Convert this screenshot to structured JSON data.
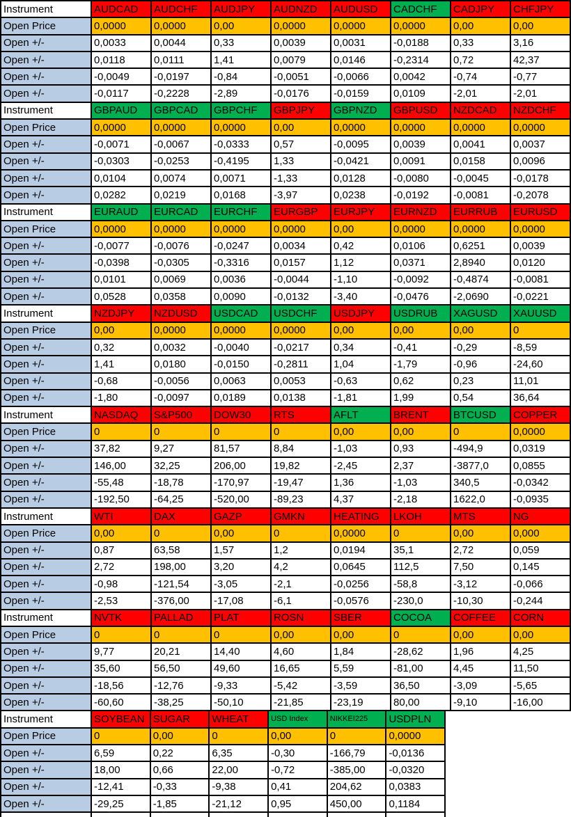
{
  "colors": {
    "red": "#ff0000",
    "green": "#00b050",
    "orange": "#ffc000",
    "label_blue": "#b8cce4",
    "grid": "#000000",
    "cell_white": "#ffffff"
  },
  "labels": {
    "instrument": "Instrument",
    "open_price": "Open Price",
    "open_change": "Open +/-"
  },
  "sections": [
    {
      "instruments": [
        {
          "name": "AUDCAD",
          "color": "red"
        },
        {
          "name": "AUDCHF",
          "color": "red"
        },
        {
          "name": "AUDJPY",
          "color": "red"
        },
        {
          "name": "AUDNZD",
          "color": "red"
        },
        {
          "name": "AUDUSD",
          "color": "red"
        },
        {
          "name": "CADCHF",
          "color": "green"
        },
        {
          "name": "CADJPY",
          "color": "red"
        },
        {
          "name": "CHFJPY",
          "color": "red"
        }
      ],
      "open_price": [
        "0,0000",
        "0,0000",
        "0,00",
        "0,0000",
        "0,0000",
        "0,0000",
        "0,00",
        "0,00"
      ],
      "open_changes": [
        [
          "0,0033",
          "0,0044",
          "0,33",
          "0,0039",
          "0,0031",
          "-0,0188",
          "0,33",
          "3,16"
        ],
        [
          "0,0118",
          "0,0111",
          "1,41",
          "0,0079",
          "0,0146",
          "-0,2314",
          "0,72",
          "42,37"
        ],
        [
          "-0,0049",
          "-0,0197",
          "-0,84",
          "-0,0051",
          "-0,0066",
          "0,0042",
          "-0,74",
          "-0,77"
        ],
        [
          "-0,0117",
          "-0,2228",
          "-2,89",
          "-0,0176",
          "-0,0159",
          "0,0109",
          "-2,01",
          "-2,01"
        ]
      ]
    },
    {
      "instruments": [
        {
          "name": "GBPAUD",
          "color": "green"
        },
        {
          "name": "GBPCAD",
          "color": "green"
        },
        {
          "name": "GBPCHF",
          "color": "green"
        },
        {
          "name": "GBPJPY",
          "color": "red"
        },
        {
          "name": "GBPNZD",
          "color": "green"
        },
        {
          "name": "GBPUSD",
          "color": "red"
        },
        {
          "name": "NZDCAD",
          "color": "red"
        },
        {
          "name": "NZDCHF",
          "color": "red"
        }
      ],
      "open_price": [
        "0,0000",
        "0,0000",
        "0,0000",
        "0,00",
        "0,0000",
        "0,0000",
        "0,0000",
        "0,0000"
      ],
      "open_changes": [
        [
          "-0,0071",
          "-0,0067",
          "-0,0333",
          "0,57",
          "-0,0095",
          "0,0039",
          "0,0041",
          "0,0037"
        ],
        [
          "-0,0303",
          "-0,0253",
          "-0,4195",
          "1,33",
          "-0,0421",
          "0,0091",
          "0,0158",
          "0,0096"
        ],
        [
          "0,0104",
          "0,0074",
          "0,0071",
          "-1,33",
          "0,0128",
          "-0,0080",
          "-0,0045",
          "-0,0178"
        ],
        [
          "0,0282",
          "0,0219",
          "0,0168",
          "-3,97",
          "0,0238",
          "-0,0192",
          "-0,0081",
          "-0,2078"
        ]
      ]
    },
    {
      "instruments": [
        {
          "name": "EURAUD",
          "color": "green"
        },
        {
          "name": "EURCAD",
          "color": "green"
        },
        {
          "name": "EURCHF",
          "color": "green"
        },
        {
          "name": "EURGBP",
          "color": "red"
        },
        {
          "name": "EURJPY",
          "color": "red"
        },
        {
          "name": "EURNZD",
          "color": "red"
        },
        {
          "name": "EURRUB",
          "color": "red"
        },
        {
          "name": "EURUSD",
          "color": "red"
        }
      ],
      "open_price": [
        "0,0000",
        "0,0000",
        "0,0000",
        "0,0000",
        "0,00",
        "0,0000",
        "0,0000",
        "0,0000"
      ],
      "open_changes": [
        [
          "-0,0077",
          "-0,0076",
          "-0,0247",
          "0,0034",
          "0,42",
          "0,0106",
          "0,6251",
          "0,0039"
        ],
        [
          "-0,0398",
          "-0,0305",
          "-0,3316",
          "0,0157",
          "1,12",
          "0,0371",
          "2,8940",
          "0,0120"
        ],
        [
          "0,0101",
          "0,0069",
          "0,0036",
          "-0,0044",
          "-1,10",
          "-0,0092",
          "-0,4874",
          "-0,0081"
        ],
        [
          "0,0528",
          "0,0358",
          "0,0090",
          "-0,0132",
          "-3,40",
          "-0,0476",
          "-2,0690",
          "-0,0221"
        ]
      ]
    },
    {
      "instruments": [
        {
          "name": "NZDJPY",
          "color": "red"
        },
        {
          "name": "NZDUSD",
          "color": "red"
        },
        {
          "name": "USDCAD",
          "color": "green"
        },
        {
          "name": "USDCHF",
          "color": "green"
        },
        {
          "name": "USDJPY",
          "color": "red"
        },
        {
          "name": "USDRUB",
          "color": "green"
        },
        {
          "name": "XAGUSD",
          "color": "green"
        },
        {
          "name": "XAUUSD",
          "color": "green"
        }
      ],
      "open_price": [
        "0,00",
        "0,0000",
        "0,0000",
        "0,0000",
        "0,00",
        "0,00",
        "0,00",
        "0"
      ],
      "open_changes": [
        [
          "0,32",
          "0,0032",
          "-0,0040",
          "-0,0217",
          "0,34",
          "-0,41",
          "-0,29",
          "-8,59"
        ],
        [
          "1,41",
          "0,0180",
          "-0,0150",
          "-0,2811",
          "1,04",
          "-1,79",
          "-0,96",
          "-24,60"
        ],
        [
          "-0,68",
          "-0,0056",
          "0,0063",
          "0,0053",
          "-0,63",
          "0,62",
          "0,23",
          "11,01"
        ],
        [
          "-1,80",
          "-0,0097",
          "0,0189",
          "0,0138",
          "-1,81",
          "1,99",
          "0,54",
          "36,64"
        ]
      ]
    },
    {
      "instruments": [
        {
          "name": "NASDAQ",
          "color": "red"
        },
        {
          "name": "S&P500",
          "color": "red"
        },
        {
          "name": "DOW30",
          "color": "red"
        },
        {
          "name": "RTS",
          "color": "red"
        },
        {
          "name": "AFLT",
          "color": "green"
        },
        {
          "name": "BRENT",
          "color": "red"
        },
        {
          "name": "BTCUSD",
          "color": "green"
        },
        {
          "name": "COPPER",
          "color": "red"
        }
      ],
      "open_price": [
        "0",
        "0",
        "0",
        "0",
        "0,00",
        "0,00",
        "0",
        "0,0000"
      ],
      "open_changes": [
        [
          "37,82",
          "9,27",
          "81,57",
          "8,84",
          "-1,03",
          "0,93",
          "-494,9",
          "0,0319"
        ],
        [
          "146,00",
          "32,25",
          "206,00",
          "19,82",
          "-2,45",
          "2,37",
          "-3877,0",
          "0,0855"
        ],
        [
          "-55,48",
          "-18,78",
          "-170,97",
          "-19,47",
          "1,36",
          "-1,03",
          "340,5",
          "-0,0342"
        ],
        [
          "-192,50",
          "-64,25",
          "-520,00",
          "-89,23",
          "4,37",
          "-2,18",
          "1622,0",
          "-0,0935"
        ]
      ]
    },
    {
      "instruments": [
        {
          "name": "WTI",
          "color": "red"
        },
        {
          "name": "DAX",
          "color": "red"
        },
        {
          "name": "GAZP",
          "color": "red"
        },
        {
          "name": "GMKN",
          "color": "red"
        },
        {
          "name": "HEATING",
          "color": "red"
        },
        {
          "name": "LKOH",
          "color": "red"
        },
        {
          "name": "MTS",
          "color": "red"
        },
        {
          "name": "NG",
          "color": "red"
        }
      ],
      "open_price": [
        "0,00",
        "0",
        "0,00",
        "0",
        "0,0000",
        "0",
        "0,00",
        "0,000"
      ],
      "open_changes": [
        [
          "0,87",
          "63,58",
          "1,57",
          "1,2",
          "0,0194",
          "35,1",
          "2,72",
          "0,059"
        ],
        [
          "2,72",
          "198,00",
          "3,20",
          "4,2",
          "0,0645",
          "112,5",
          "7,50",
          "0,145"
        ],
        [
          "-0,98",
          "-121,54",
          "-3,05",
          "-2,1",
          "-0,0256",
          "-58,8",
          "-3,12",
          "-0,066"
        ],
        [
          "-2,53",
          "-376,00",
          "-17,08",
          "-6,1",
          "-0,0576",
          "-230,0",
          "-10,30",
          "-0,244"
        ]
      ]
    },
    {
      "instruments": [
        {
          "name": "NVTK",
          "color": "red"
        },
        {
          "name": "PALLAD",
          "color": "red"
        },
        {
          "name": "PLAT",
          "color": "red"
        },
        {
          "name": "ROSN",
          "color": "red"
        },
        {
          "name": "SBER",
          "color": "red"
        },
        {
          "name": "COCOA",
          "color": "green"
        },
        {
          "name": "COFFEE",
          "color": "red"
        },
        {
          "name": "CORN",
          "color": "red"
        }
      ],
      "open_price": [
        "0",
        "0",
        "0",
        "0,00",
        "0,00",
        "0",
        "0,00",
        "0,00"
      ],
      "open_changes": [
        [
          "9,77",
          "20,21",
          "14,40",
          "4,60",
          "1,84",
          "-28,62",
          "1,96",
          "4,25"
        ],
        [
          "35,60",
          "56,50",
          "49,60",
          "16,65",
          "5,59",
          "-81,00",
          "4,45",
          "11,50"
        ],
        [
          "-18,56",
          "-12,76",
          "-9,33",
          "-5,42",
          "-3,59",
          "36,50",
          "-3,09",
          "-5,65"
        ],
        [
          "-60,60",
          "-38,25",
          "-50,10",
          "-21,85",
          "-23,19",
          "80,00",
          "-9,10",
          "-16,00"
        ]
      ]
    },
    {
      "instruments": [
        {
          "name": "SOYBEAN",
          "color": "red"
        },
        {
          "name": "SUGAR",
          "color": "red"
        },
        {
          "name": "WHEAT",
          "color": "red"
        },
        {
          "name": "USD Index",
          "color": "green",
          "small": true
        },
        {
          "name": "NIKKEI225",
          "color": "green",
          "small": true
        },
        {
          "name": "USDPLN",
          "color": "green"
        }
      ],
      "open_price": [
        "0",
        "0,00",
        "0",
        "0,00",
        "0",
        "0,0000"
      ],
      "open_changes": [
        [
          "6,59",
          "0,22",
          "6,35",
          "-0,30",
          "-166,79",
          "-0,0136"
        ],
        [
          "18,00",
          "0,66",
          "22,00",
          "-0,72",
          "-385,00",
          "-0,0320"
        ],
        [
          "-12,41",
          "-0,33",
          "-9,38",
          "0,41",
          "204,62",
          "0,0383"
        ],
        [
          "-29,25",
          "-1,85",
          "-21,12",
          "0,95",
          "450,00",
          "0,1184"
        ]
      ]
    }
  ]
}
